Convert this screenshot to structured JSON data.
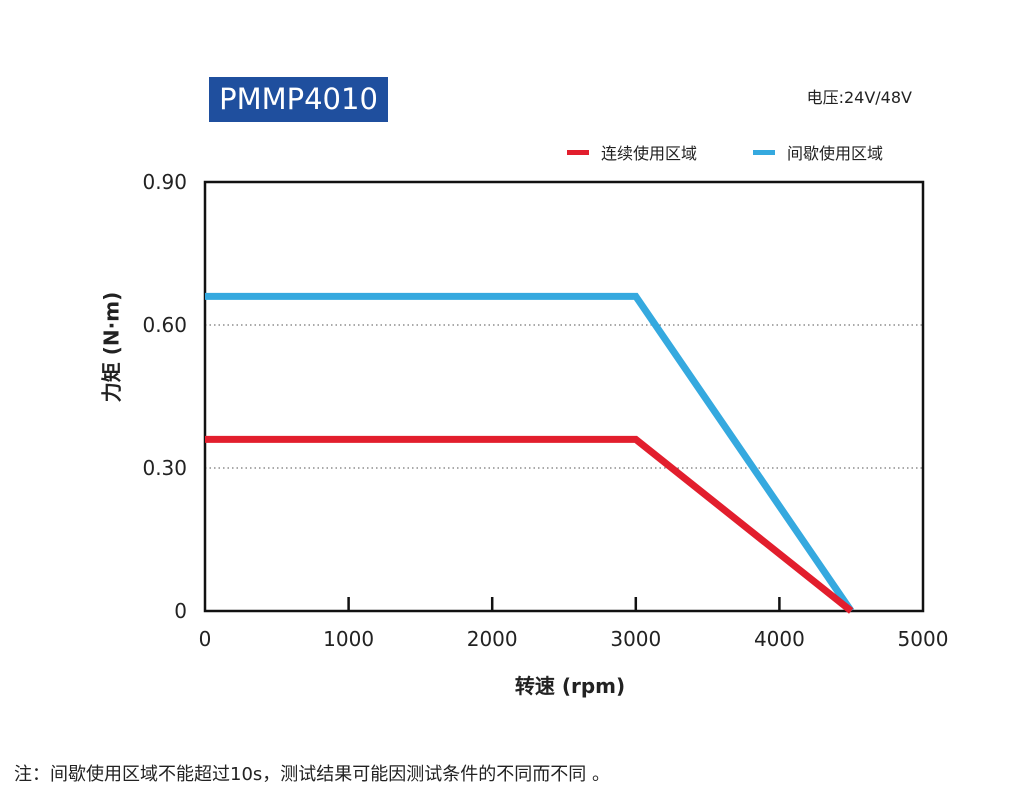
{
  "header": {
    "model": "PMMP4010",
    "voltage": "电压:24V/48V"
  },
  "colors": {
    "badge_bg": "#1f4f9e",
    "continuous": "#e21e2d",
    "intermittent": "#35a9df"
  },
  "chart_data": {
    "type": "line",
    "title": "PMMP4010",
    "xlabel": "转速 (rpm)",
    "ylabel": "力矩 (N·m)",
    "xlim": [
      0,
      5000
    ],
    "ylim": [
      0,
      0.9
    ],
    "xticks": [
      0,
      1000,
      2000,
      3000,
      4000,
      5000
    ],
    "yticks": [
      0,
      0.3,
      0.6,
      0.9
    ],
    "xtick_labels": [
      "0",
      "1000",
      "2000",
      "3000",
      "4000",
      "5000"
    ],
    "ytick_labels": [
      "0",
      "0.30",
      "0.60",
      "0.90"
    ],
    "grid": "horizontal dotted at 0.30 and 0.60",
    "legend": "top-right",
    "series": [
      {
        "name": "连续使用区域",
        "color": "#e21e2d",
        "points": [
          [
            0,
            0.36
          ],
          [
            3000,
            0.36
          ],
          [
            4500,
            0.0
          ]
        ]
      },
      {
        "name": "间歇使用区域",
        "color": "#35a9df",
        "points": [
          [
            0,
            0.66
          ],
          [
            3000,
            0.66
          ],
          [
            4500,
            0.0
          ]
        ]
      }
    ]
  },
  "footnote": "注：间歇使用区域不能超过10s，测试结果可能因测试条件的不同而不同 。"
}
